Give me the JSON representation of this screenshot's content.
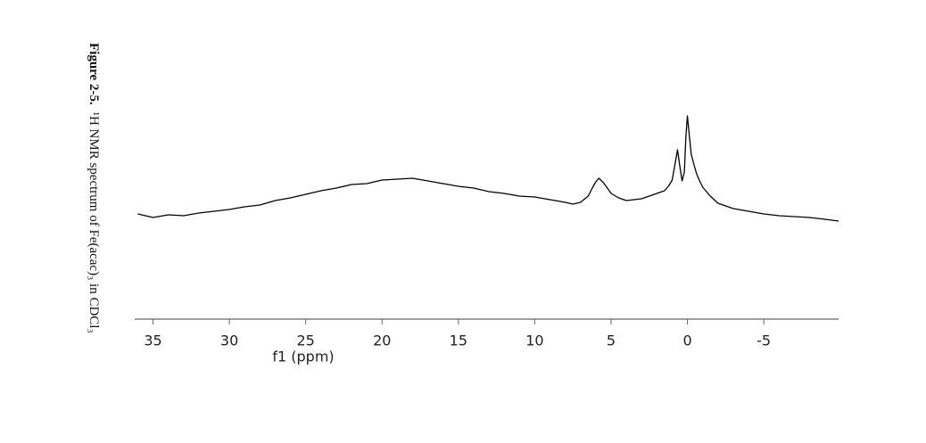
{
  "chart_data": {
    "type": "line",
    "caption": {
      "label": "Figure 2-5.",
      "text": "¹H NMR spectrum of Fe(acac)₃ in CDCl₃"
    },
    "xlabel": "f1 (ppm)",
    "x": [
      36,
      35,
      34,
      33,
      32,
      31,
      30,
      29,
      28,
      27,
      26,
      25,
      24,
      23,
      22,
      21,
      20,
      19,
      18,
      17,
      16,
      15,
      14,
      13,
      12,
      11,
      10,
      9,
      8,
      7.5,
      7,
      6.5,
      6.2,
      6,
      5.8,
      5.5,
      5.2,
      5,
      4.5,
      4,
      3.5,
      3,
      2.5,
      2,
      1.5,
      1.2,
      1.0,
      0.8,
      0.65,
      0.5,
      0.35,
      0.2,
      0.1,
      0,
      -0.1,
      -0.25,
      -0.4,
      -0.6,
      -0.8,
      -1,
      -1.5,
      -2,
      -2.5,
      -3,
      -4,
      -5,
      -6,
      -7,
      -8,
      -9,
      -9.9
    ],
    "series": [
      {
        "color": "#000000",
        "values": [
          118,
          114,
          117,
          116,
          119,
          121,
          123,
          126,
          128,
          133,
          136,
          140,
          144,
          147,
          151,
          152,
          156,
          157,
          158,
          155,
          152,
          149,
          147,
          143,
          141,
          138,
          137,
          134,
          131,
          129,
          131,
          138,
          148,
          154,
          158,
          153,
          146,
          141,
          136,
          133,
          134,
          135,
          138,
          141,
          144,
          150,
          156,
          175,
          190,
          172,
          155,
          165,
          205,
          228,
          210,
          185,
          175,
          163,
          155,
          148,
          138,
          130,
          127,
          124,
          121,
          118,
          116,
          115,
          114,
          112,
          110
        ]
      }
    ],
    "xlim": [
      36.2,
      -9.9
    ],
    "ylim": [
      0,
      240
    ],
    "xticks": [
      35,
      30,
      25,
      20,
      15,
      10,
      5,
      0,
      -5
    ]
  }
}
